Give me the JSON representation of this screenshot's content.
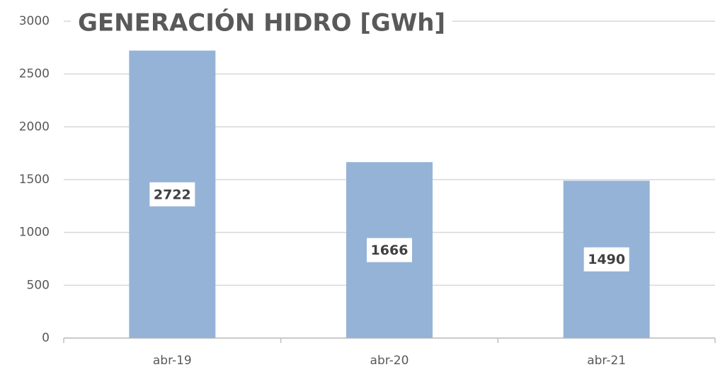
{
  "chart_data": {
    "type": "bar",
    "title": "GENERACIÓN HIDRO [GWh]",
    "categories": [
      "abr-19",
      "abr-20",
      "abr-21"
    ],
    "values": [
      2722,
      1666,
      1490
    ],
    "color": "#95b3d7",
    "ylim": [
      0,
      3000
    ],
    "yticks": [
      0,
      500,
      1000,
      1500,
      2000,
      2500,
      3000
    ],
    "grid": true
  }
}
